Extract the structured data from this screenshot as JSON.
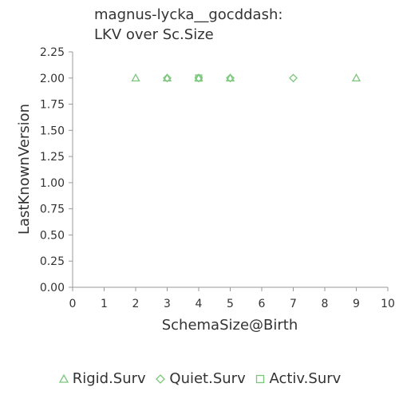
{
  "chart_data": {
    "type": "scatter",
    "title": [
      "magnus-lycka__gocddash:",
      "LKV over Sc.Size"
    ],
    "xlabel": "SchemaSize@Birth",
    "ylabel": "LastKnownVersion",
    "xlim": [
      0,
      10
    ],
    "ylim": [
      0,
      2.25
    ],
    "x_ticks": [
      "0",
      "1",
      "2",
      "3",
      "4",
      "5",
      "6",
      "7",
      "8",
      "9",
      "10"
    ],
    "y_ticks": [
      "0.00",
      "0.25",
      "0.50",
      "0.75",
      "1.00",
      "1.25",
      "1.50",
      "1.75",
      "2.00",
      "2.25"
    ],
    "grid": false,
    "legend_position": "bottom",
    "series": [
      {
        "name": "Rigid.Surv",
        "marker": "triangle",
        "color": "#7ac77a",
        "points": [
          {
            "x": 2,
            "y": 2.0
          },
          {
            "x": 3,
            "y": 2.0
          },
          {
            "x": 4,
            "y": 2.0
          },
          {
            "x": 5,
            "y": 2.0
          },
          {
            "x": 9,
            "y": 2.0
          }
        ]
      },
      {
        "name": "Quiet.Surv",
        "marker": "diamond",
        "color": "#7ac77a",
        "points": [
          {
            "x": 3,
            "y": 2.0
          },
          {
            "x": 4,
            "y": 2.0
          },
          {
            "x": 5,
            "y": 2.0
          },
          {
            "x": 7,
            "y": 2.0
          }
        ]
      },
      {
        "name": "Activ.Surv",
        "marker": "square",
        "color": "#7ac77a",
        "points": [
          {
            "x": 4,
            "y": 2.0
          }
        ]
      }
    ]
  }
}
